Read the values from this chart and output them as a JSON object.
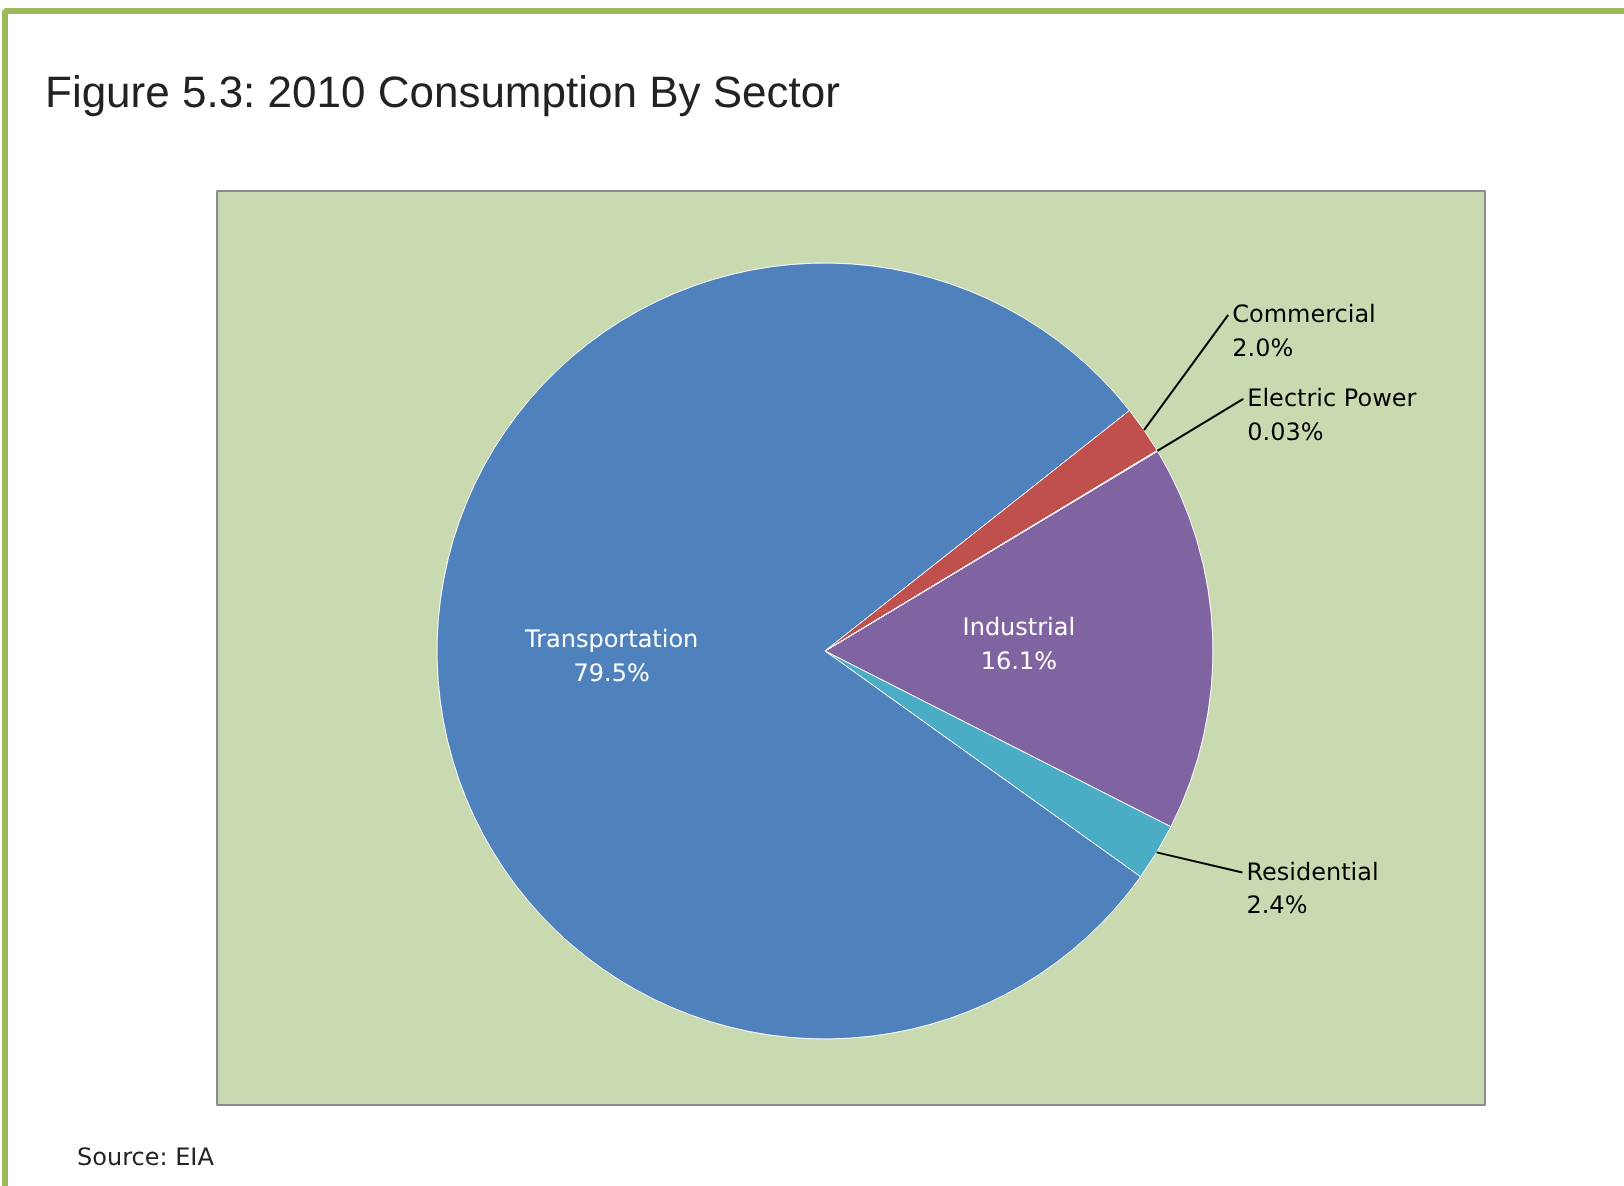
{
  "chart_data": {
    "type": "pie",
    "title": "Figure 5.3: 2010 Consumption By Sector",
    "categories": [
      "Industrial",
      "Residential",
      "Transportation",
      "Commercial",
      "Electric Power"
    ],
    "values": [
      16.1,
      2.4,
      79.5,
      2.0,
      0.03
    ],
    "colors": [
      "#8064a2",
      "#4bacc6",
      "#4f81bd",
      "#c0504d",
      "#9bbb59"
    ],
    "value_labels": [
      "16.1%",
      "2.4%",
      "79.5%",
      "2.0%",
      "0.03%"
    ],
    "annotations": [
      "Source: EIA"
    ]
  }
}
